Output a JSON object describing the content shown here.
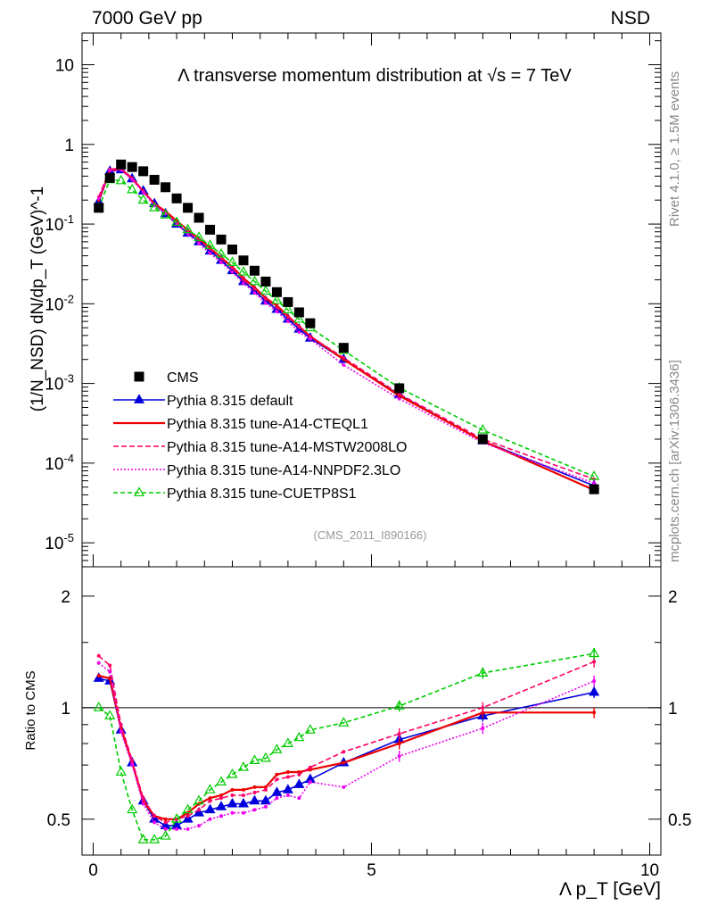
{
  "header": {
    "left": "7000 GeV pp",
    "right": "NSD"
  },
  "side_labels": {
    "rivet": "Rivet 4.1.0, ≥ 1.5M events",
    "mcplots": "mcplots.cern.ch [arXiv:1306.3436]"
  },
  "colors": {
    "cms": "#000000",
    "default": "#0000dd",
    "a14_cteql1": "#ee0000",
    "a14_mstw": "#ff0066",
    "a14_nnpdf": "#ee00ee",
    "cuetp8s1": "#00cc00"
  },
  "chart_data": [
    {
      "type": "scatter",
      "panel": "main",
      "title": "Λ transverse momentum distribution at √s = 7 TeV",
      "ylabel": "(1/N_NSD) dN/dp_T (GeV)^-1",
      "xlabel": "Λ p_T [GeV]",
      "xlim": [
        -0.2,
        10.2
      ],
      "ylim": [
        5e-06,
        25
      ],
      "yscale": "log",
      "xticks": [
        "0",
        "5",
        "10"
      ],
      "yticks": [
        "10",
        "1",
        "10^-1",
        "10^-2",
        "10^-3",
        "10^-4",
        "10^-5"
      ],
      "reference": "(CMS_2011_I890166)",
      "legend": [
        {
          "key": "cms",
          "label": "CMS"
        },
        {
          "key": "default",
          "label": "Pythia 8.315 default"
        },
        {
          "key": "a14_cteql1",
          "label": "Pythia 8.315 tune-A14-CTEQL1"
        },
        {
          "key": "a14_mstw",
          "label": "Pythia 8.315 tune-A14-MSTW2008LO"
        },
        {
          "key": "a14_nnpdf",
          "label": "Pythia 8.315 tune-A14-NNPDF2.3LO"
        },
        {
          "key": "cuetp8s1",
          "label": "Pythia 8.315 tune-CUETP8S1"
        }
      ],
      "x": [
        0.1,
        0.3,
        0.5,
        0.7,
        0.9,
        1.1,
        1.3,
        1.5,
        1.7,
        1.9,
        2.1,
        2.3,
        2.5,
        2.7,
        2.9,
        3.1,
        3.3,
        3.5,
        3.7,
        3.9,
        4.5,
        5.5,
        7.0,
        9.0
      ],
      "series": [
        {
          "key": "cms",
          "name": "CMS",
          "marker": "square",
          "values": [
            0.16,
            0.38,
            0.56,
            0.52,
            0.46,
            0.36,
            0.29,
            0.21,
            0.16,
            0.12,
            0.085,
            0.064,
            0.048,
            0.035,
            0.026,
            0.019,
            0.014,
            0.0105,
            0.0078,
            0.0057,
            0.0028,
            0.00087,
            0.0002,
            4.7e-05
          ]
        },
        {
          "key": "default",
          "name": "Pythia 8.315 default",
          "marker": "triangle-filled",
          "dash": "",
          "values": [
            0.19,
            0.46,
            0.48,
            0.37,
            0.26,
            0.18,
            0.135,
            0.1,
            0.077,
            0.06,
            0.046,
            0.035,
            0.026,
            0.019,
            0.0145,
            0.0108,
            0.0085,
            0.0064,
            0.0048,
            0.0037,
            0.002,
            0.00072,
            0.00019,
            5.2e-05
          ]
        },
        {
          "key": "a14_cteql1",
          "name": "Pythia 8.315 tune-A14-CTEQL1",
          "marker": "dot",
          "dash": "",
          "values": [
            0.2,
            0.47,
            0.49,
            0.37,
            0.26,
            0.18,
            0.145,
            0.11,
            0.084,
            0.066,
            0.05,
            0.038,
            0.029,
            0.021,
            0.016,
            0.0118,
            0.0095,
            0.007,
            0.0052,
            0.0039,
            0.002,
            0.0007,
            0.00019,
            4.6e-05
          ]
        },
        {
          "key": "a14_mstw",
          "name": "Pythia 8.315 tune-A14-MSTW2008LO",
          "marker": "dot",
          "dash": "6,3",
          "values": [
            0.22,
            0.49,
            0.5,
            0.38,
            0.26,
            0.18,
            0.14,
            0.105,
            0.082,
            0.063,
            0.049,
            0.037,
            0.028,
            0.02,
            0.0153,
            0.0114,
            0.009,
            0.0068,
            0.0051,
            0.0039,
            0.0021,
            0.00074,
            0.0002,
            6.3e-05
          ]
        },
        {
          "key": "a14_nnpdf",
          "name": "Pythia 8.315 tune-A14-NNPDF2.3LO",
          "marker": "dot",
          "dash": "2,2",
          "values": [
            0.21,
            0.47,
            0.48,
            0.36,
            0.25,
            0.17,
            0.135,
            0.1,
            0.075,
            0.057,
            0.043,
            0.033,
            0.025,
            0.018,
            0.0137,
            0.0102,
            0.008,
            0.006,
            0.0044,
            0.0036,
            0.0017,
            0.00064,
            0.00018,
            5.6e-05
          ]
        },
        {
          "key": "cuetp8s1",
          "name": "Pythia 8.315 tune-CUETP8S1",
          "marker": "triangle-open",
          "dash": "5,3",
          "values": [
            0.16,
            0.36,
            0.35,
            0.27,
            0.2,
            0.16,
            0.13,
            0.105,
            0.085,
            0.068,
            0.054,
            0.042,
            0.033,
            0.025,
            0.019,
            0.0144,
            0.011,
            0.0084,
            0.0064,
            0.005,
            0.0026,
            0.00088,
            0.00026,
            6.8e-05
          ]
        }
      ]
    },
    {
      "type": "line",
      "panel": "ratio",
      "ylabel": "Ratio to CMS",
      "xlabel": "Λ p_T [GeV]",
      "xlim": [
        -0.2,
        10.2
      ],
      "ylim": [
        0.4,
        2.4
      ],
      "yscale": "log",
      "yticks": [
        "2",
        "1",
        "0.5"
      ],
      "reference_line": 1,
      "x": [
        0.1,
        0.3,
        0.5,
        0.7,
        0.9,
        1.1,
        1.3,
        1.5,
        1.7,
        1.9,
        2.1,
        2.3,
        2.5,
        2.7,
        2.9,
        3.1,
        3.3,
        3.5,
        3.7,
        3.9,
        4.5,
        5.5,
        7.0,
        9.0
      ],
      "series": [
        {
          "key": "default",
          "name": "Pythia 8.315 default",
          "marker": "triangle-filled",
          "dash": "",
          "values": [
            1.2,
            1.18,
            0.87,
            0.71,
            0.56,
            0.5,
            0.48,
            0.48,
            0.5,
            0.52,
            0.53,
            0.54,
            0.55,
            0.55,
            0.56,
            0.56,
            0.59,
            0.6,
            0.62,
            0.64,
            0.71,
            0.82,
            0.95,
            1.1
          ]
        },
        {
          "key": "a14_cteql1",
          "name": "Pythia 8.315 tune-A14-CTEQL1",
          "marker": "dot",
          "dash": "",
          "values": [
            1.22,
            1.2,
            0.88,
            0.71,
            0.56,
            0.51,
            0.5,
            0.5,
            0.52,
            0.55,
            0.57,
            0.58,
            0.6,
            0.6,
            0.61,
            0.61,
            0.66,
            0.67,
            0.67,
            0.68,
            0.71,
            0.8,
            0.97,
            0.97
          ]
        },
        {
          "key": "a14_mstw",
          "name": "Pythia 8.315 tune-A14-MSTW2008LO",
          "marker": "dot",
          "dash": "6,3",
          "values": [
            1.38,
            1.3,
            0.9,
            0.72,
            0.57,
            0.51,
            0.49,
            0.5,
            0.51,
            0.53,
            0.56,
            0.57,
            0.58,
            0.58,
            0.59,
            0.6,
            0.64,
            0.65,
            0.66,
            0.69,
            0.76,
            0.85,
            1.0,
            1.33
          ]
        },
        {
          "key": "a14_nnpdf",
          "name": "Pythia 8.315 tune-A14-NNPDF2.3LO",
          "marker": "dot",
          "dash": "2,2",
          "values": [
            1.32,
            1.25,
            0.86,
            0.7,
            0.55,
            0.49,
            0.47,
            0.47,
            0.47,
            0.48,
            0.5,
            0.51,
            0.52,
            0.52,
            0.53,
            0.54,
            0.57,
            0.58,
            0.57,
            0.63,
            0.61,
            0.74,
            0.88,
            1.18
          ]
        },
        {
          "key": "cuetp8s1",
          "name": "Pythia 8.315 tune-CUETP8S1",
          "marker": "triangle-open",
          "dash": "5,3",
          "values": [
            1.0,
            0.95,
            0.67,
            0.53,
            0.44,
            0.44,
            0.45,
            0.5,
            0.53,
            0.56,
            0.6,
            0.63,
            0.66,
            0.69,
            0.72,
            0.73,
            0.77,
            0.8,
            0.83,
            0.87,
            0.91,
            1.01,
            1.24,
            1.4
          ]
        }
      ]
    }
  ]
}
